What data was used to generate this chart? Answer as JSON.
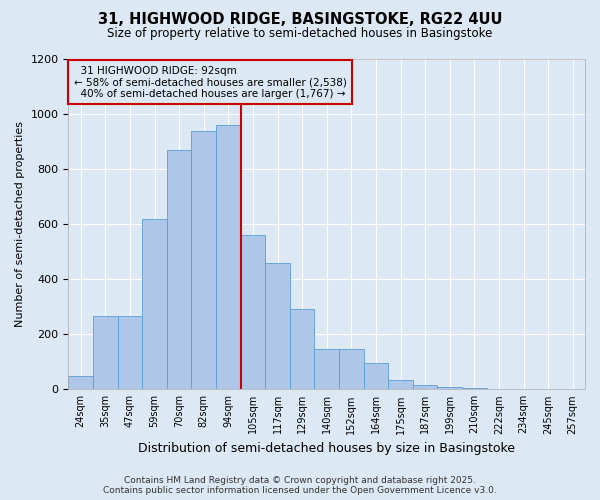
{
  "title": "31, HIGHWOOD RIDGE, BASINGSTOKE, RG22 4UU",
  "subtitle": "Size of property relative to semi-detached houses in Basingstoke",
  "xlabel": "Distribution of semi-detached houses by size in Basingstoke",
  "ylabel": "Number of semi-detached properties",
  "bar_labels": [
    "24sqm",
    "35sqm",
    "47sqm",
    "59sqm",
    "70sqm",
    "82sqm",
    "94sqm",
    "105sqm",
    "117sqm",
    "129sqm",
    "140sqm",
    "152sqm",
    "164sqm",
    "175sqm",
    "187sqm",
    "199sqm",
    "210sqm",
    "222sqm",
    "234sqm",
    "245sqm",
    "257sqm"
  ],
  "bar_values": [
    50,
    265,
    265,
    620,
    870,
    940,
    960,
    560,
    460,
    290,
    145,
    145,
    95,
    35,
    15,
    10,
    5,
    2,
    1,
    0,
    0
  ],
  "bar_color": "#aec6e8",
  "bar_edgecolor": "#5a9fd4",
  "property_label": "31 HIGHWOOD RIDGE: 92sqm",
  "smaller_pct": 58,
  "smaller_count": 2538,
  "larger_pct": 40,
  "larger_count": 1767,
  "vline_color": "#cc0000",
  "vline_bin_index": 6.5,
  "annotation_box_edgecolor": "#cc0000",
  "ylim": [
    0,
    1200
  ],
  "yticks": [
    0,
    200,
    400,
    600,
    800,
    1000,
    1200
  ],
  "bg_color": "#dde8f5",
  "grid_color": "#ffffff",
  "footer": "Contains HM Land Registry data © Crown copyright and database right 2025.\nContains public sector information licensed under the Open Government Licence v3.0."
}
